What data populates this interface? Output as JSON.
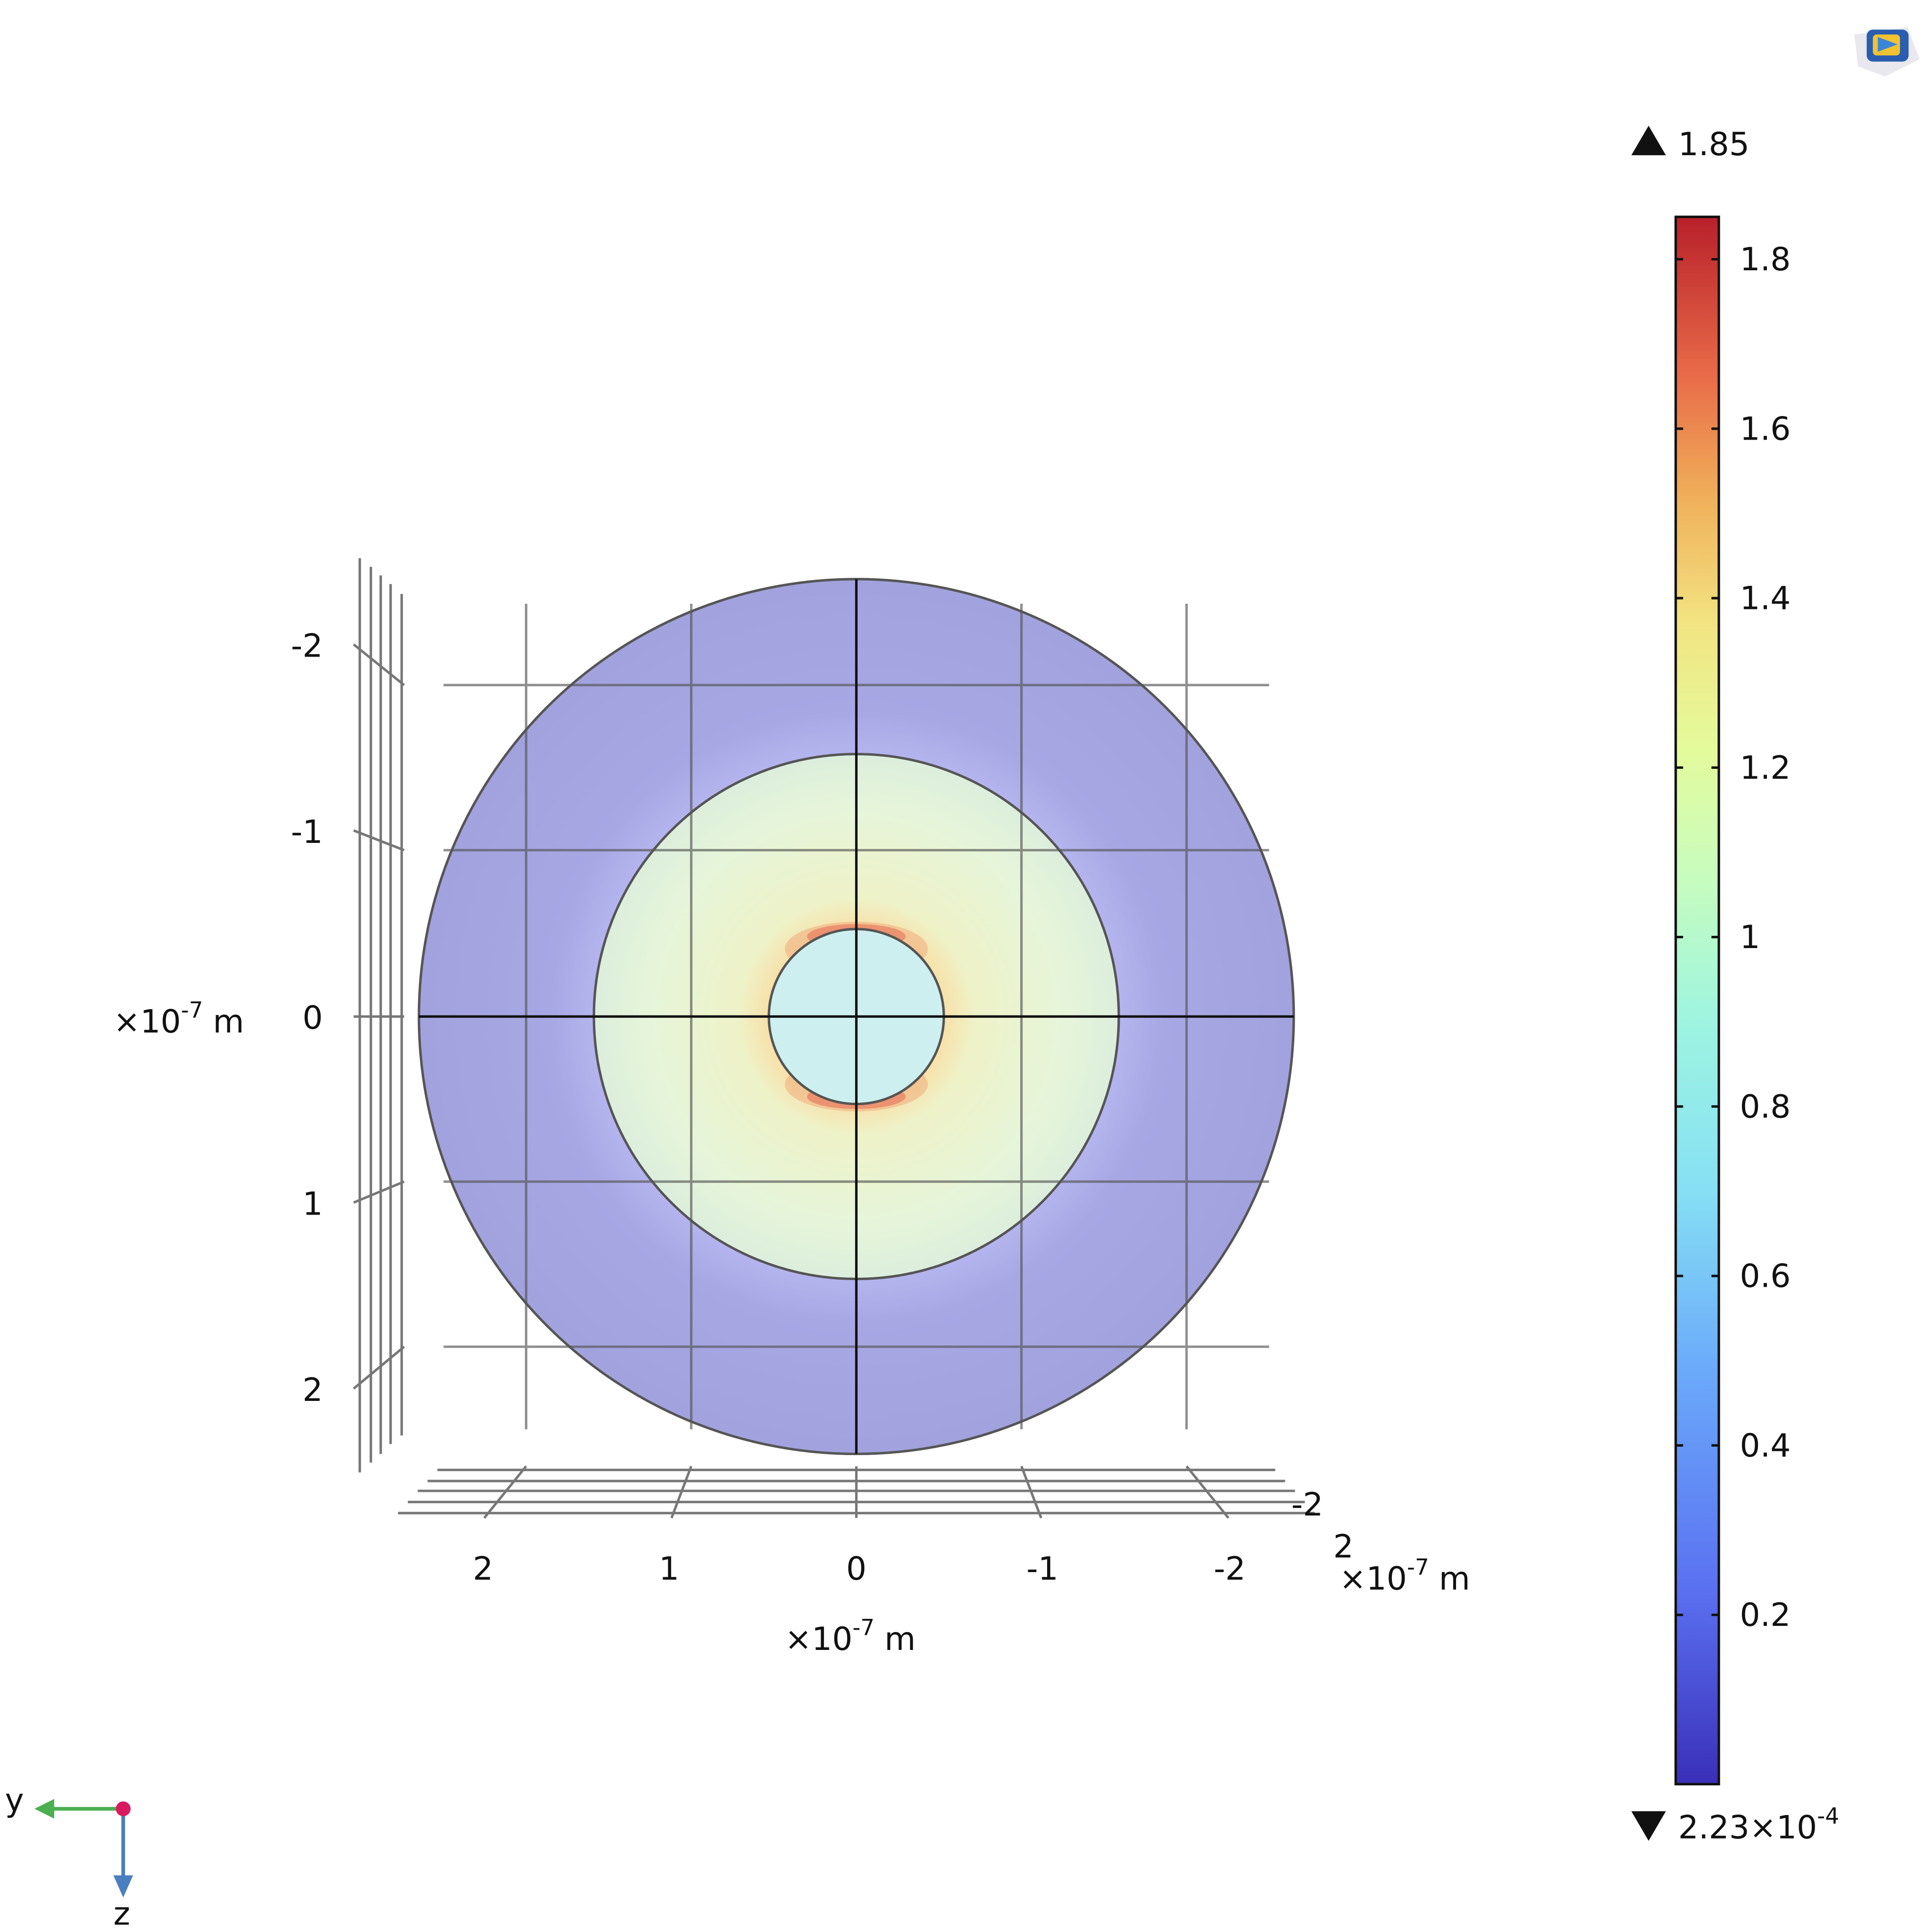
{
  "plot": {
    "y_axis_ticks": [
      "-2",
      "-1",
      "0",
      "1",
      "2"
    ],
    "y_axis_unit_base": "×10",
    "y_axis_unit_exp": "-7",
    "y_axis_unit_m": "m",
    "x_axis_ticks": [
      "2",
      "1",
      "0",
      "-1",
      "-2"
    ],
    "x_axis_unit_base": "×10",
    "x_axis_unit_exp": "-7",
    "x_axis_unit_m": "m",
    "depth_ticks": [
      "-2",
      "2"
    ],
    "depth_unit_base": "×10",
    "depth_unit_exp": "-7",
    "depth_unit_m": "m"
  },
  "colorbar": {
    "max_value": "1.85",
    "min_value_base": "2.23×10",
    "min_value_exp": "-4",
    "ticks": [
      "1.8",
      "1.6",
      "1.4",
      "1.2",
      "1",
      "0.8",
      "0.6",
      "0.4",
      "0.2"
    ],
    "tick_values": [
      1.8,
      1.6,
      1.4,
      1.2,
      1.0,
      0.8,
      0.6,
      0.4,
      0.2
    ],
    "range": [
      0.000223,
      1.85
    ],
    "colormap": "rainbow"
  },
  "triad": {
    "y_label": "y",
    "z_label": "z",
    "y_color": "#4caf50",
    "z_color": "#4a7fbf",
    "x_color": "#d81b60"
  },
  "colors": {
    "outer_shell": "#a3a3e0",
    "middle_shell": "#e6f5da",
    "inner_core": "#c8eeee",
    "hotspot": "#e06040"
  }
}
